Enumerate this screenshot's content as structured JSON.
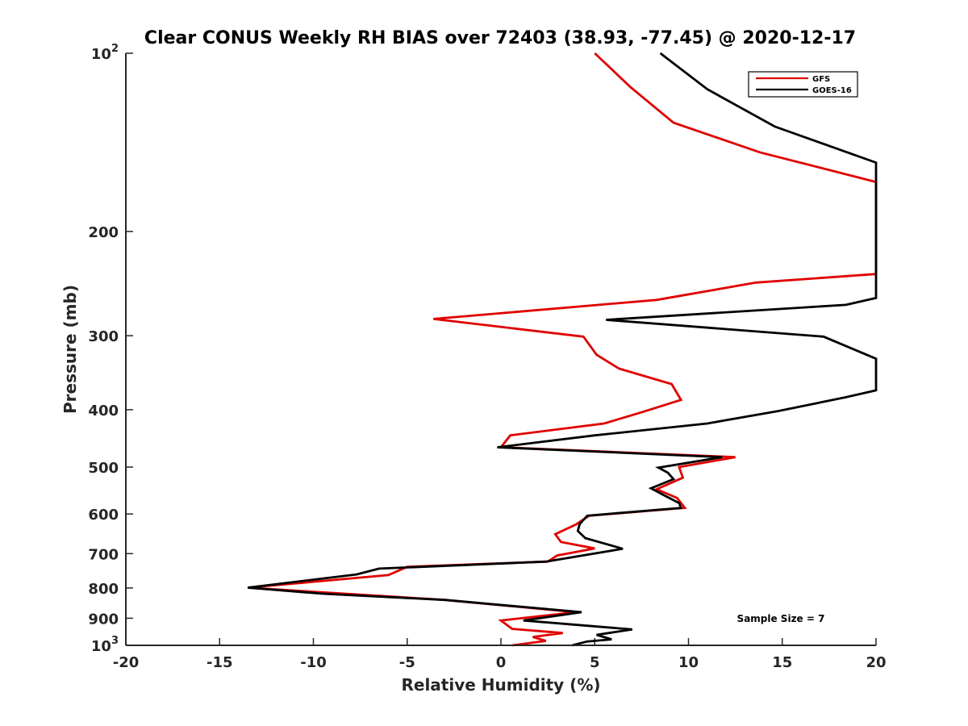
{
  "chart_data": {
    "type": "line",
    "title": "Clear CONUS Weekly RH BIAS over 72403 (38.93, -77.45) @ 2020-12-17",
    "xlabel": "Relative Humidity (%)",
    "ylabel": "Pressure (mb)",
    "xlim": [
      -20,
      20
    ],
    "ylim": [
      100,
      1000
    ],
    "y_scale": "log",
    "y_reversed": true,
    "x_ticks": [
      "-20",
      "-15",
      "-10",
      "-5",
      "0",
      "5",
      "10",
      "15",
      "20"
    ],
    "y_ticks": [
      {
        "base": "10",
        "exp": "2"
      },
      {
        "base": "200",
        "exp": ""
      },
      {
        "base": "300",
        "exp": ""
      },
      {
        "base": "400",
        "exp": ""
      },
      {
        "base": "500",
        "exp": ""
      },
      {
        "base": "600",
        "exp": ""
      },
      {
        "base": "700",
        "exp": ""
      },
      {
        "base": "800",
        "exp": ""
      },
      {
        "base": "900",
        "exp": ""
      },
      {
        "base": "10",
        "exp": "3"
      }
    ],
    "legend_position": "top-right",
    "annotation": "Sample Size = 7",
    "series": [
      {
        "name": "GFS",
        "color": "#e00000",
        "points": [
          [
            5.0,
            100
          ],
          [
            6.9,
            114
          ],
          [
            9.2,
            131
          ],
          [
            13.8,
            147
          ],
          [
            20.0,
            165
          ],
          [
            20.0,
            236
          ],
          [
            13.6,
            244
          ],
          [
            8.3,
            261
          ],
          [
            -3.6,
            281
          ],
          [
            4.4,
            301
          ],
          [
            5.1,
            323
          ],
          [
            6.3,
            341
          ],
          [
            9.1,
            362
          ],
          [
            9.6,
            385
          ],
          [
            7.5,
            404
          ],
          [
            5.5,
            422
          ],
          [
            0.5,
            442
          ],
          [
            0.0,
            463
          ],
          [
            12.5,
            481
          ],
          [
            9.5,
            500
          ],
          [
            9.7,
            521
          ],
          [
            8.3,
            545
          ],
          [
            9.4,
            564
          ],
          [
            9.8,
            586
          ],
          [
            4.7,
            604
          ],
          [
            4.0,
            625
          ],
          [
            2.9,
            649
          ],
          [
            3.2,
            669
          ],
          [
            5.0,
            686
          ],
          [
            3.0,
            705
          ],
          [
            2.5,
            722
          ],
          [
            -5.0,
            737
          ],
          [
            -6.0,
            761
          ],
          [
            -13.5,
            799
          ],
          [
            -3.0,
            838
          ],
          [
            4.0,
            879
          ],
          [
            0.0,
            908
          ],
          [
            0.6,
            938
          ],
          [
            3.3,
            953
          ],
          [
            1.7,
            968
          ],
          [
            2.4,
            983
          ],
          [
            0.6,
            1000
          ]
        ]
      },
      {
        "name": "GOES-16",
        "color": "#000000",
        "points": [
          [
            8.5,
            100
          ],
          [
            11.0,
            115
          ],
          [
            14.6,
            133
          ],
          [
            20.0,
            153
          ],
          [
            20.0,
            259
          ],
          [
            18.4,
            266
          ],
          [
            5.6,
            282
          ],
          [
            17.2,
            301
          ],
          [
            20.0,
            328
          ],
          [
            20.0,
            371
          ],
          [
            18.4,
            381
          ],
          [
            14.8,
            402
          ],
          [
            11.0,
            422
          ],
          [
            5.0,
            442
          ],
          [
            -0.2,
            463
          ],
          [
            11.8,
            481
          ],
          [
            8.4,
            501
          ],
          [
            8.9,
            511
          ],
          [
            9.2,
            524
          ],
          [
            8.0,
            543
          ],
          [
            8.7,
            558
          ],
          [
            9.5,
            575
          ],
          [
            9.6,
            586
          ],
          [
            4.6,
            604
          ],
          [
            4.2,
            624
          ],
          [
            4.1,
            641
          ],
          [
            4.5,
            659
          ],
          [
            6.5,
            687
          ],
          [
            2.4,
            722
          ],
          [
            -6.5,
            742
          ],
          [
            -7.7,
            759
          ],
          [
            -13.5,
            799
          ],
          [
            -9.5,
            818
          ],
          [
            -3.0,
            838
          ],
          [
            4.3,
            879
          ],
          [
            1.2,
            908
          ],
          [
            7.0,
            940
          ],
          [
            5.1,
            960
          ],
          [
            5.9,
            977
          ],
          [
            4.6,
            985
          ],
          [
            3.8,
            1000
          ]
        ]
      }
    ]
  }
}
